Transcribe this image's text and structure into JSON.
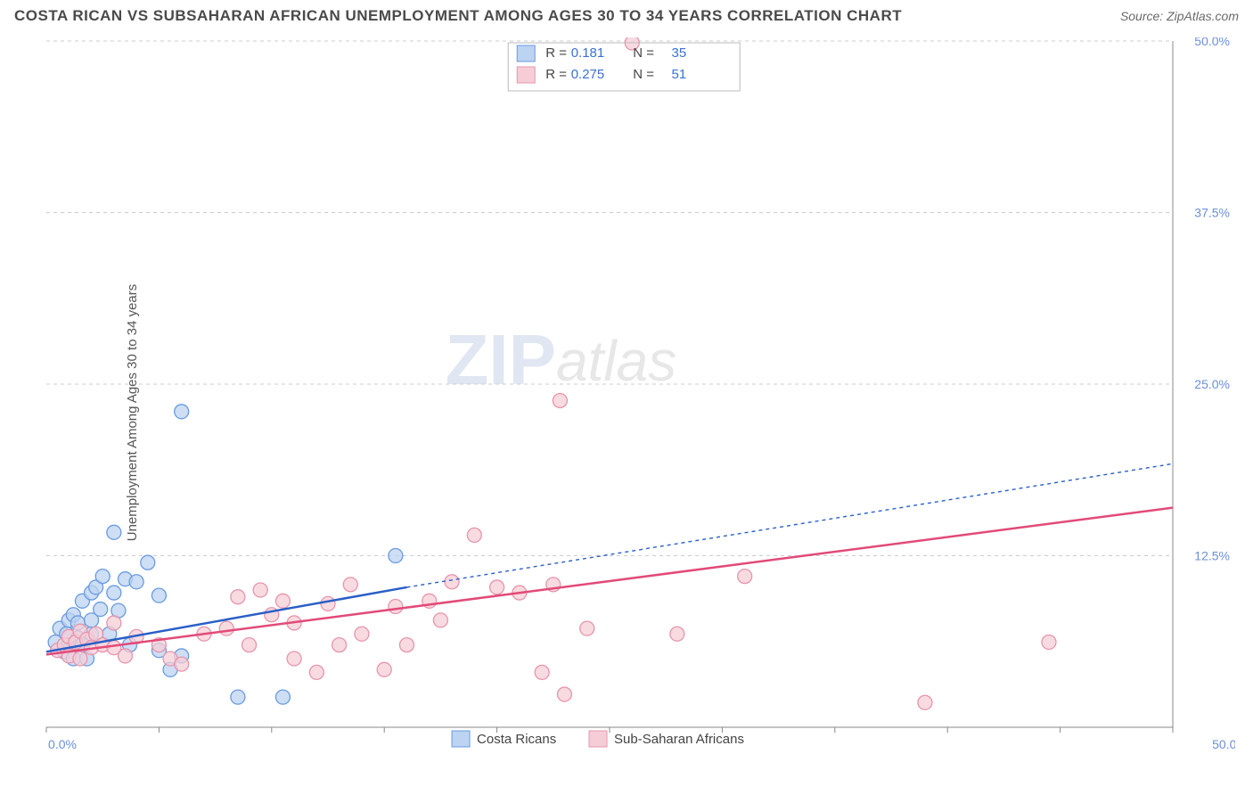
{
  "title": "COSTA RICAN VS SUBSAHARAN AFRICAN UNEMPLOYMENT AMONG AGES 30 TO 34 YEARS CORRELATION CHART",
  "source_label": "Source: ",
  "source_value": "ZipAtlas.com",
  "ylabel": "Unemployment Among Ages 30 to 34 years",
  "watermark": {
    "part1": "ZIP",
    "part2": "atlas"
  },
  "chart": {
    "type": "scatter",
    "xlim": [
      0,
      50
    ],
    "ylim": [
      0,
      50
    ],
    "x_ticks": [
      0,
      5,
      10,
      15,
      20,
      25,
      30,
      35,
      40,
      45,
      50
    ],
    "x_tick_labels_shown": {
      "0": "0.0%",
      "50": "50.0%"
    },
    "y_ticks": [
      12.5,
      25.0,
      37.5,
      50.0
    ],
    "y_tick_labels": [
      "12.5%",
      "25.0%",
      "37.5%",
      "50.0%"
    ],
    "background_color": "#ffffff",
    "grid_color": "#cccccc",
    "axis_color": "#888888",
    "label_color": "#6a8fd8",
    "marker_radius": 8,
    "marker_stroke_width": 1.3,
    "series": [
      {
        "name": "Costa Ricans",
        "fill": "#bcd3f2",
        "stroke": "#6a9bdf",
        "line_color": "#2a5fc7",
        "line_dash_ext": "4 4",
        "line_width": 2.5,
        "trend": {
          "x1": 0,
          "y1": 5.5,
          "x2": 16,
          "y2": 10.2,
          "x2ext": 50,
          "y2ext": 19.2
        },
        "R": "0.181",
        "N": "35",
        "points": [
          [
            0.4,
            6.2
          ],
          [
            0.6,
            7.2
          ],
          [
            0.8,
            5.5
          ],
          [
            0.9,
            6.8
          ],
          [
            1.0,
            7.8
          ],
          [
            1.0,
            6.0
          ],
          [
            1.2,
            8.2
          ],
          [
            1.2,
            5.0
          ],
          [
            1.4,
            6.5
          ],
          [
            1.4,
            7.6
          ],
          [
            1.6,
            9.2
          ],
          [
            1.6,
            6.0
          ],
          [
            1.8,
            5.0
          ],
          [
            2.0,
            9.8
          ],
          [
            2.0,
            6.8
          ],
          [
            2.0,
            7.8
          ],
          [
            2.2,
            10.2
          ],
          [
            2.4,
            8.6
          ],
          [
            2.5,
            11.0
          ],
          [
            2.8,
            6.8
          ],
          [
            3.0,
            9.8
          ],
          [
            3.0,
            14.2
          ],
          [
            3.2,
            8.5
          ],
          [
            3.5,
            10.8
          ],
          [
            3.7,
            6.0
          ],
          [
            4.0,
            10.6
          ],
          [
            4.5,
            12.0
          ],
          [
            5.0,
            9.6
          ],
          [
            5.0,
            5.6
          ],
          [
            5.5,
            4.2
          ],
          [
            6.0,
            23.0
          ],
          [
            6.0,
            5.2
          ],
          [
            8.5,
            2.2
          ],
          [
            10.5,
            2.2
          ],
          [
            15.5,
            12.5
          ]
        ]
      },
      {
        "name": "Sub-Saharan Africans",
        "fill": "#f6cdd7",
        "stroke": "#e695ab",
        "line_color": "#e24a78",
        "line_width": 2.5,
        "trend": {
          "x1": 0,
          "y1": 5.3,
          "x2": 50,
          "y2": 16.0
        },
        "R": "0.275",
        "N": "51",
        "points": [
          [
            0.5,
            5.6
          ],
          [
            0.8,
            6.0
          ],
          [
            1.0,
            6.6
          ],
          [
            1.0,
            5.2
          ],
          [
            1.3,
            6.2
          ],
          [
            1.5,
            5.0
          ],
          [
            1.5,
            7.0
          ],
          [
            1.8,
            6.4
          ],
          [
            2.0,
            5.8
          ],
          [
            2.2,
            6.8
          ],
          [
            2.5,
            6.0
          ],
          [
            3.0,
            5.8
          ],
          [
            3.0,
            7.6
          ],
          [
            3.5,
            5.2
          ],
          [
            4.0,
            6.6
          ],
          [
            5.0,
            6.0
          ],
          [
            5.5,
            5.0
          ],
          [
            6.0,
            4.6
          ],
          [
            7.0,
            6.8
          ],
          [
            8.0,
            7.2
          ],
          [
            8.5,
            9.5
          ],
          [
            9.0,
            6.0
          ],
          [
            9.5,
            10.0
          ],
          [
            10.0,
            8.2
          ],
          [
            10.5,
            9.2
          ],
          [
            11.0,
            5.0
          ],
          [
            11.0,
            7.6
          ],
          [
            12.0,
            4.0
          ],
          [
            12.5,
            9.0
          ],
          [
            13.0,
            6.0
          ],
          [
            13.5,
            10.4
          ],
          [
            14.0,
            6.8
          ],
          [
            15.0,
            4.2
          ],
          [
            15.5,
            8.8
          ],
          [
            16.0,
            6.0
          ],
          [
            17.0,
            9.2
          ],
          [
            17.5,
            7.8
          ],
          [
            18.0,
            10.6
          ],
          [
            19.0,
            14.0
          ],
          [
            20.0,
            10.2
          ],
          [
            21.0,
            9.8
          ],
          [
            22.0,
            4.0
          ],
          [
            22.5,
            10.4
          ],
          [
            22.8,
            23.8
          ],
          [
            23.0,
            2.4
          ],
          [
            24.0,
            7.2
          ],
          [
            26.0,
            53.0
          ],
          [
            28.0,
            6.8
          ],
          [
            31.0,
            11.0
          ],
          [
            39.0,
            1.8
          ],
          [
            44.5,
            6.2
          ]
        ]
      }
    ]
  },
  "legend_top": {
    "R_label": "R =",
    "N_label": "N ="
  },
  "legend_bottom": {}
}
